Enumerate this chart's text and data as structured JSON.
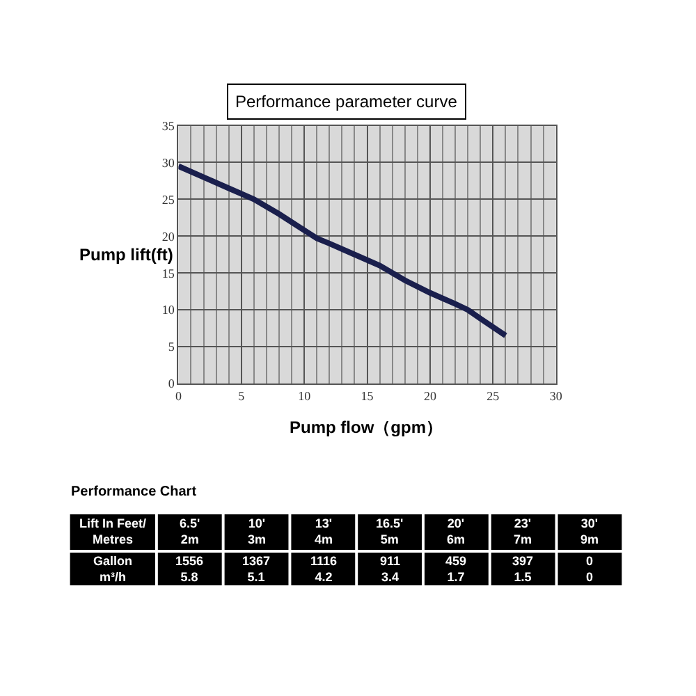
{
  "chart_data": [
    {
      "type": "line",
      "title": "Performance parameter curve",
      "xlabel": "Pump flow（gpm）",
      "ylabel": "Pump lift(ft)",
      "x": [
        0,
        2,
        4,
        6,
        8,
        10,
        11,
        12,
        14,
        16,
        18,
        20,
        22,
        23,
        24,
        26
      ],
      "series": [
        {
          "color": "#1a1f4d",
          "values": [
            29.5,
            28,
            26.5,
            25,
            23,
            20.8,
            19.7,
            19,
            17.5,
            16,
            14,
            12.3,
            10.8,
            10,
            8.8,
            6.5
          ]
        }
      ],
      "xlim": [
        0,
        30
      ],
      "ylim": [
        0,
        35
      ],
      "xticks": [
        0,
        5,
        10,
        15,
        20,
        25,
        30
      ],
      "yticks": [
        0,
        5,
        10,
        15,
        20,
        25,
        30,
        35
      ],
      "grid": true,
      "marker": "none",
      "line_style": "solid"
    },
    {
      "type": "other",
      "title": "Performance Chart",
      "categories": [
        "Lift In Feet/\nMetres",
        "6.5'\n2m",
        "10'\n3m",
        "13'\n4m",
        "16.5'\n5m",
        "20'\n6m",
        "23'\n7m",
        "30'\n9m"
      ],
      "annotations": [
        "Gallon\nm³/h",
        "1556\n5.8",
        "1367\n5.1",
        "1116\n4.2",
        "911\n3.4",
        "459\n1.7",
        "397\n1.5",
        "0\n0"
      ]
    }
  ]
}
